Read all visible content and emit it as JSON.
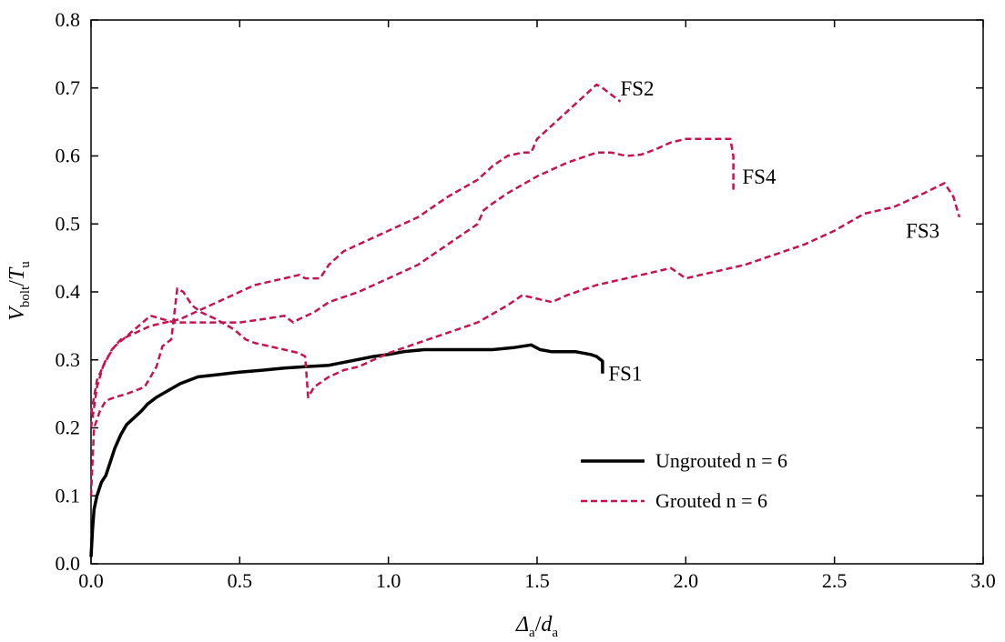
{
  "chart_data": {
    "type": "line",
    "xlabel": {
      "main": "Δ",
      "main_sub": "a",
      "sep": "/",
      "denom": "d",
      "denom_sub": "a"
    },
    "ylabel": {
      "main": "V",
      "main_sub": "bolt",
      "sep": "/",
      "denom": "T",
      "denom_sub": "u"
    },
    "xlim": [
      0.0,
      3.0
    ],
    "ylim": [
      0.0,
      0.8
    ],
    "xticks": [
      "0.0",
      "0.5",
      "1.0",
      "1.5",
      "2.0",
      "2.5",
      "3.0"
    ],
    "yticks": [
      "0.0",
      "0.1",
      "0.2",
      "0.3",
      "0.4",
      "0.5",
      "0.6",
      "0.7",
      "0.8"
    ],
    "grid": false,
    "legend": {
      "placement": "lower-right",
      "entries": [
        {
          "label": "Ungrouted n = 6",
          "style": "solid",
          "color": "#000000"
        },
        {
          "label": "Grouted n = 6",
          "style": "dashed",
          "color": "#c8124e"
        }
      ]
    },
    "series": [
      {
        "name": "FS1",
        "group": "Ungrouted n = 6",
        "style": "solid",
        "color": "#000000",
        "x": [
          0.0,
          0.005,
          0.01,
          0.02,
          0.035,
          0.05,
          0.065,
          0.08,
          0.1,
          0.12,
          0.145,
          0.17,
          0.19,
          0.22,
          0.26,
          0.3,
          0.36,
          0.42,
          0.5,
          0.58,
          0.65,
          0.72,
          0.8,
          0.87,
          0.95,
          1.0,
          1.05,
          1.12,
          1.2,
          1.3,
          1.35,
          1.42,
          1.48,
          1.51,
          1.55,
          1.63,
          1.68,
          1.7,
          1.72,
          1.72
        ],
        "y": [
          0.01,
          0.05,
          0.08,
          0.1,
          0.12,
          0.13,
          0.15,
          0.17,
          0.19,
          0.205,
          0.215,
          0.225,
          0.235,
          0.245,
          0.255,
          0.265,
          0.275,
          0.278,
          0.282,
          0.285,
          0.288,
          0.29,
          0.292,
          0.298,
          0.305,
          0.308,
          0.312,
          0.315,
          0.315,
          0.315,
          0.315,
          0.318,
          0.322,
          0.315,
          0.312,
          0.312,
          0.308,
          0.305,
          0.298,
          0.28
        ]
      },
      {
        "name": "FS2",
        "group": "Grouted n = 6",
        "style": "dashed",
        "color": "#c8124e",
        "x": [
          0.0,
          0.01,
          0.02,
          0.04,
          0.07,
          0.1,
          0.15,
          0.2,
          0.25,
          0.3,
          0.35,
          0.4,
          0.45,
          0.5,
          0.55,
          0.6,
          0.65,
          0.7,
          0.72,
          0.77,
          0.8,
          0.85,
          0.9,
          1.0,
          1.05,
          1.1,
          1.2,
          1.3,
          1.35,
          1.4,
          1.45,
          1.48,
          1.5,
          1.55,
          1.6,
          1.65,
          1.7,
          1.72,
          1.75,
          1.78
        ],
        "y": [
          0.2,
          0.23,
          0.26,
          0.29,
          0.315,
          0.33,
          0.34,
          0.35,
          0.355,
          0.36,
          0.37,
          0.38,
          0.39,
          0.4,
          0.41,
          0.415,
          0.42,
          0.425,
          0.42,
          0.42,
          0.44,
          0.46,
          0.47,
          0.49,
          0.5,
          0.51,
          0.54,
          0.565,
          0.585,
          0.6,
          0.605,
          0.605,
          0.625,
          0.645,
          0.665,
          0.685,
          0.705,
          0.7,
          0.69,
          0.68
        ]
      },
      {
        "name": "FS3",
        "group": "Grouted n = 6",
        "style": "dashed",
        "color": "#c8124e",
        "x": [
          0.0,
          0.01,
          0.03,
          0.05,
          0.08,
          0.12,
          0.15,
          0.18,
          0.22,
          0.24,
          0.27,
          0.29,
          0.31,
          0.34,
          0.37,
          0.42,
          0.48,
          0.52,
          0.55,
          0.6,
          0.65,
          0.7,
          0.72,
          0.73,
          0.75,
          0.8,
          0.85,
          0.9,
          1.0,
          1.1,
          1.2,
          1.3,
          1.4,
          1.45,
          1.5,
          1.55,
          1.6,
          1.7,
          1.8,
          1.9,
          1.95,
          2.0,
          2.1,
          2.2,
          2.3,
          2.4,
          2.5,
          2.6,
          2.65,
          2.7,
          2.8,
          2.87,
          2.9,
          2.92
        ],
        "y": [
          0.1,
          0.2,
          0.225,
          0.24,
          0.245,
          0.25,
          0.255,
          0.26,
          0.29,
          0.32,
          0.33,
          0.405,
          0.4,
          0.38,
          0.37,
          0.36,
          0.345,
          0.33,
          0.325,
          0.32,
          0.315,
          0.31,
          0.305,
          0.245,
          0.26,
          0.275,
          0.285,
          0.29,
          0.31,
          0.325,
          0.34,
          0.355,
          0.38,
          0.395,
          0.39,
          0.385,
          0.395,
          0.41,
          0.42,
          0.43,
          0.435,
          0.42,
          0.43,
          0.44,
          0.455,
          0.47,
          0.49,
          0.515,
          0.52,
          0.525,
          0.545,
          0.56,
          0.54,
          0.51
        ]
      },
      {
        "name": "FS4",
        "group": "Grouted n = 6",
        "style": "dashed",
        "color": "#c8124e",
        "x": [
          0.0,
          0.02,
          0.05,
          0.08,
          0.12,
          0.16,
          0.2,
          0.24,
          0.28,
          0.32,
          0.4,
          0.5,
          0.58,
          0.65,
          0.68,
          0.7,
          0.75,
          0.8,
          0.9,
          1.0,
          1.1,
          1.2,
          1.3,
          1.32,
          1.35,
          1.4,
          1.5,
          1.6,
          1.7,
          1.75,
          1.8,
          1.85,
          1.9,
          1.95,
          2.0,
          2.05,
          2.1,
          2.15,
          2.16,
          2.16,
          2.16
        ],
        "y": [
          0.22,
          0.27,
          0.3,
          0.32,
          0.335,
          0.35,
          0.365,
          0.36,
          0.355,
          0.355,
          0.355,
          0.355,
          0.36,
          0.365,
          0.355,
          0.36,
          0.37,
          0.385,
          0.4,
          0.42,
          0.44,
          0.47,
          0.5,
          0.52,
          0.53,
          0.545,
          0.57,
          0.59,
          0.605,
          0.605,
          0.6,
          0.602,
          0.61,
          0.62,
          0.625,
          0.625,
          0.625,
          0.625,
          0.6,
          0.57,
          0.545
        ]
      }
    ],
    "annotations": [
      {
        "text": "FS1",
        "x": 1.74,
        "y": 0.28
      },
      {
        "text": "FS2",
        "x": 1.78,
        "y": 0.7
      },
      {
        "text": "FS4",
        "x": 2.19,
        "y": 0.57
      },
      {
        "text": "FS3",
        "x": 2.74,
        "y": 0.49
      }
    ]
  }
}
